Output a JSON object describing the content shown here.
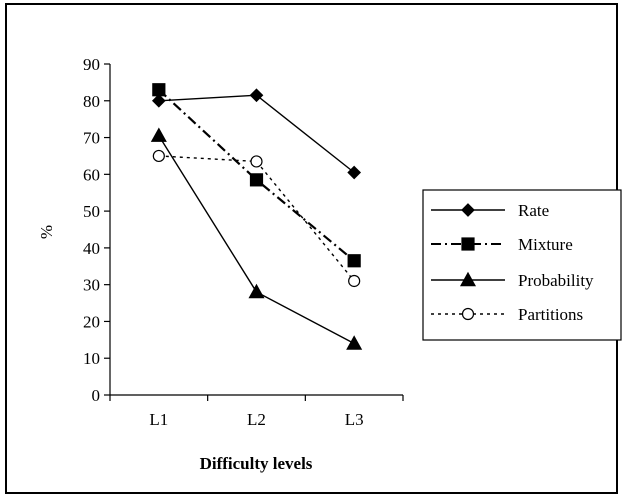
{
  "chart_data": {
    "type": "line",
    "title": "",
    "xlabel": "Difficulty levels",
    "ylabel": "%",
    "categories": [
      "L1",
      "L2",
      "L3"
    ],
    "ylim": [
      0,
      90
    ],
    "yticks": [
      0,
      10,
      20,
      30,
      40,
      50,
      60,
      70,
      80,
      90
    ],
    "grid": false,
    "legend_position": "right",
    "series": [
      {
        "name": "Rate",
        "values": [
          80,
          81.5,
          60.5
        ],
        "marker": "diamond",
        "line": "solid",
        "fill": "#000000"
      },
      {
        "name": "Mixture",
        "values": [
          83,
          58.5,
          36.5
        ],
        "marker": "square",
        "line": "dashdot",
        "fill": "#000000"
      },
      {
        "name": "Probability",
        "values": [
          70.5,
          28,
          14
        ],
        "marker": "triangle",
        "line": "solid",
        "fill": "#000000"
      },
      {
        "name": "Partitions",
        "values": [
          65,
          63.5,
          31
        ],
        "marker": "circle",
        "line": "dotted",
        "fill": "#ffffff"
      }
    ]
  }
}
